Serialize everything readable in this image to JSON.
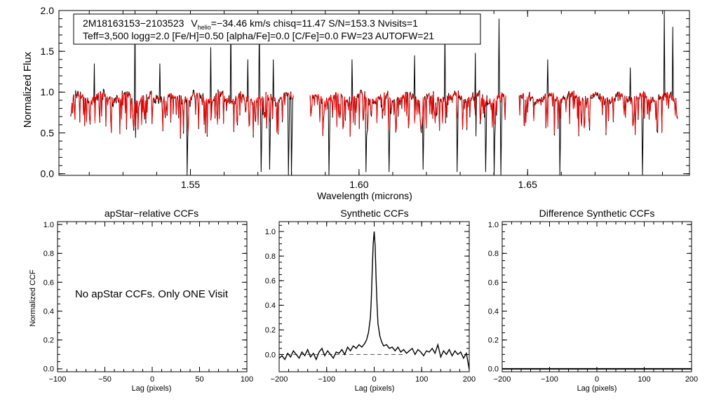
{
  "chart_data": [
    {
      "type": "line",
      "id": "spectrum",
      "xlabel": "Wavelength (microns)",
      "ylabel": "Normalized Flux",
      "xlim": [
        1.511,
        1.698
      ],
      "ylim": [
        -0.02,
        2.0
      ],
      "xticks": [
        1.55,
        1.6,
        1.65
      ],
      "xtick_labels": [
        "1.55",
        "1.60",
        "1.65"
      ],
      "yticks": [
        0.0,
        0.5,
        1.0,
        1.5,
        2.0
      ],
      "ytick_labels": [
        "0.0",
        "0.5",
        "1.0",
        "1.5",
        "2.0"
      ],
      "info_line1_name": "2M18163153−2103523",
      "info_line1_vhelio_label": "V",
      "info_line1_vhelio_sub": "helio",
      "info_line1_rest": "=−34.46 km/s  chisq=11.47  S/N=153.3  Nvisits=1",
      "info_line2": "Teff=3,500 logg=2.0 [Fe/H]=0.50 [alpha/Fe]=0.0 [C/Fe]=0.0 FW=23 AUTOFW=21",
      "chips": [
        [
          1.5145,
          1.5805
        ],
        [
          1.5855,
          1.6435
        ],
        [
          1.6475,
          1.6945
        ]
      ],
      "series": [
        {
          "name": "observed",
          "color": "#000000"
        },
        {
          "name": "synthetic",
          "color": "#ff0000"
        }
      ],
      "deep_lines": [
        {
          "x": 1.5335,
          "y": -0.02
        },
        {
          "x": 1.549,
          "y": -0.02
        },
        {
          "x": 1.571,
          "y": 0.02
        },
        {
          "x": 1.579,
          "y": -0.02
        },
        {
          "x": 1.58,
          "y": -0.02
        },
        {
          "x": 1.591,
          "y": -0.02
        },
        {
          "x": 1.602,
          "y": 0.02
        },
        {
          "x": 1.609,
          "y": 0.02
        },
        {
          "x": 1.619,
          "y": 0.05
        },
        {
          "x": 1.629,
          "y": 0.02
        },
        {
          "x": 1.6345,
          "y": 0.02
        },
        {
          "x": 1.6375,
          "y": 0.02
        },
        {
          "x": 1.64,
          "y": -0.02
        },
        {
          "x": 1.642,
          "y": -0.02
        },
        {
          "x": 1.6595,
          "y": -0.02
        },
        {
          "x": 1.684,
          "y": -0.02
        },
        {
          "x": 1.5735,
          "y": 0.05
        }
      ],
      "emission_lines": [
        {
          "x": 1.5215,
          "y": 1.35
        },
        {
          "x": 1.5335,
          "y": 2.0
        },
        {
          "x": 1.541,
          "y": 1.35
        },
        {
          "x": 1.556,
          "y": 1.55
        },
        {
          "x": 1.562,
          "y": 1.9
        },
        {
          "x": 1.567,
          "y": 1.4
        },
        {
          "x": 1.5705,
          "y": 1.85
        },
        {
          "x": 1.5745,
          "y": 1.4
        },
        {
          "x": 1.598,
          "y": 1.4
        },
        {
          "x": 1.6165,
          "y": 1.45
        },
        {
          "x": 1.6255,
          "y": 1.8
        },
        {
          "x": 1.6345,
          "y": 1.48
        },
        {
          "x": 1.6415,
          "y": 1.9
        },
        {
          "x": 1.656,
          "y": 1.4
        },
        {
          "x": 1.6805,
          "y": 1.3
        },
        {
          "x": 1.6905,
          "y": 2.0
        },
        {
          "x": 1.693,
          "y": 1.8
        }
      ]
    },
    {
      "type": "line",
      "id": "apstar-ccf",
      "title": "apStar−relative CCFs",
      "xlabel": "Lag (pixels)",
      "ylabel": "Normalized CCF",
      "xlim": [
        -100,
        100
      ],
      "ylim": [
        -0.02,
        1.02
      ],
      "xticks": [
        -100,
        -50,
        0,
        50,
        100
      ],
      "xtick_labels": [
        "−100",
        "−50",
        "0",
        "50",
        "100"
      ],
      "yticks": [
        0.0,
        0.2,
        0.4,
        0.6,
        0.8,
        1.0
      ],
      "ytick_labels": [
        "0.0",
        "0.2",
        "0.4",
        "0.6",
        "0.8",
        "1.0"
      ],
      "annotation": "No apStar CCFs.  Only ONE Visit",
      "series": []
    },
    {
      "type": "line",
      "id": "synthetic-ccf",
      "title": "Synthetic CCFs",
      "xlabel": "Lag (pixels)",
      "xlim": [
        -200,
        200
      ],
      "ylim": [
        -0.14,
        1.08
      ],
      "xticks": [
        -200,
        -100,
        0,
        100,
        200
      ],
      "xtick_labels": [
        "−200",
        "−100",
        "0",
        "100",
        "200"
      ],
      "yticks": [
        0.0,
        0.2,
        0.4,
        0.6,
        0.8,
        1.0
      ],
      "ytick_labels": [
        "0.0",
        "0.2",
        "0.4",
        "0.6",
        "0.8",
        "1.0"
      ],
      "baseline": {
        "y": 0.0,
        "x": [
          -200,
          60
        ],
        "style": "dashed",
        "color": "#666666"
      },
      "series": [
        {
          "name": "ccf",
          "color": "#000000",
          "x": [
            -200,
            -194,
            -188,
            -182,
            -176,
            -170,
            -164,
            -158,
            -152,
            -146,
            -140,
            -134,
            -128,
            -122,
            -116,
            -110,
            -104,
            -98,
            -92,
            -86,
            -80,
            -74,
            -68,
            -62,
            -56,
            -50,
            -44,
            -38,
            -32,
            -26,
            -20,
            -16,
            -12,
            -8,
            -6,
            -4,
            -2,
            0,
            2,
            4,
            6,
            8,
            12,
            16,
            20,
            26,
            32,
            38,
            44,
            50,
            56,
            62,
            68,
            74,
            80,
            86,
            92,
            98,
            104,
            110,
            116,
            122,
            128,
            134,
            140,
            146,
            152,
            158,
            164,
            170,
            176,
            182,
            188,
            194,
            200
          ],
          "y": [
            -0.03,
            -0.01,
            -0.04,
            0.01,
            -0.02,
            0.03,
            0.0,
            -0.03,
            0.02,
            -0.01,
            0.04,
            -0.02,
            0.01,
            -0.04,
            0.02,
            0.05,
            -0.01,
            0.03,
            0.0,
            -0.03,
            0.02,
            0.01,
            0.04,
            0.0,
            0.06,
            0.03,
            0.07,
            0.05,
            0.08,
            0.06,
            0.09,
            0.12,
            0.18,
            0.3,
            0.45,
            0.7,
            0.9,
            1.0,
            0.88,
            0.62,
            0.4,
            0.25,
            0.15,
            0.1,
            0.07,
            0.08,
            0.05,
            0.06,
            0.03,
            0.06,
            0.02,
            0.04,
            0.01,
            0.03,
            0.05,
            0.0,
            0.04,
            0.02,
            -0.01,
            0.03,
            0.02,
            0.05,
            0.01,
            0.08,
            -0.02,
            0.03,
            0.0,
            0.04,
            -0.01,
            0.03,
            0.0,
            0.02,
            -0.03,
            0.01,
            -0.12
          ]
        }
      ]
    },
    {
      "type": "line",
      "id": "difference-ccf",
      "title": "Difference Synthetic CCFs",
      "xlabel": "Lag (pixels)",
      "xlim": [
        -200,
        200
      ],
      "ylim": [
        -0.02,
        1.02
      ],
      "xticks": [
        -200,
        -100,
        0,
        100,
        200
      ],
      "xtick_labels": [
        "−200",
        "−100",
        "0",
        "100",
        "200"
      ],
      "yticks": [
        0.0,
        0.2,
        0.4,
        0.6,
        0.8,
        1.0
      ],
      "ytick_labels": [
        "0.0",
        "0.2",
        "0.4",
        "0.6",
        "0.8",
        "1.0"
      ],
      "series": [
        {
          "name": "difference",
          "color": "#000000",
          "x": [
            -200,
            200
          ],
          "y": [
            0.0,
            0.0
          ]
        }
      ]
    }
  ]
}
